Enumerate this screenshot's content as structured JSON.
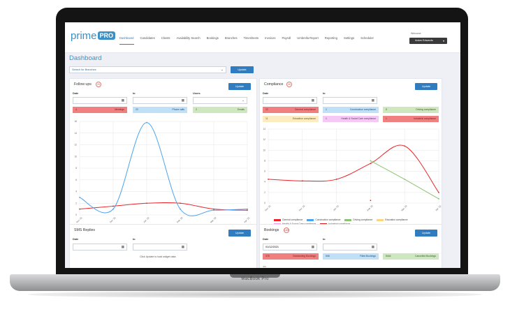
{
  "device": {
    "label": "MacBook Pro"
  },
  "app": {
    "brand": "prime",
    "brand_badge": "PRO"
  },
  "nav": {
    "items": [
      "Dashboard",
      "Candidates",
      "Clients",
      "Availability Search",
      "Bookings",
      "Branches",
      "Timesheets",
      "Invoices",
      "Payroll",
      "Umbrella Report",
      "Reporting",
      "Settings",
      "Scheduler"
    ]
  },
  "user": {
    "label": "Welcome",
    "name": "Adam Edwards"
  },
  "page": {
    "title": "Dashboard"
  },
  "branch": {
    "placeholder": "Search for Branches",
    "update": "Update"
  },
  "followups": {
    "title": "Follow ups",
    "badge": "24",
    "update": "Update",
    "date_label": "Date",
    "to_label": "to",
    "users_label": "Users",
    "stats": [
      {
        "count": "4",
        "label": "Meetings"
      },
      {
        "count": "22",
        "label": "Phone calls"
      },
      {
        "count": "2",
        "label": "Emails"
      }
    ]
  },
  "compliance": {
    "title": "Compliance",
    "badge": "40",
    "update": "Update",
    "date_label": "Date",
    "to_label": "to",
    "stats": [
      {
        "count": "22",
        "label": "General compliance"
      },
      {
        "count": "1",
        "label": "Construction compliance"
      },
      {
        "count": "5",
        "label": "Driving compliance"
      },
      {
        "count": "11",
        "label": "Education compliance"
      },
      {
        "count": "1",
        "label": "Health & Social Care compliance"
      },
      {
        "count": "1",
        "label": "Industrial compliance"
      }
    ]
  },
  "sms": {
    "title": "SMS Replies",
    "update": "Update",
    "date_label": "Date",
    "to_label": "to",
    "hint": "Click Update to load widget data"
  },
  "bookings": {
    "title": "Bookings",
    "badge": "1000",
    "update": "Update",
    "date_label": "Date",
    "to_label": "to",
    "date_value": "01/12/2021",
    "stats": [
      {
        "count": "378",
        "label": "Outstanding Bookings"
      },
      {
        "count": "508",
        "label": "Filled Bookings"
      },
      {
        "count": "5444",
        "label": "Cancelled Bookings"
      }
    ],
    "axis_top": "400"
  },
  "colors": {
    "red": "#e8262a",
    "blue": "#4aa3ee",
    "green": "#8bc472",
    "yellow": "#f7d67d",
    "pink": "#ef9aef",
    "darkred": "#d81b1b",
    "accent": "#2f7dc0"
  },
  "chart_data": [
    {
      "type": "line",
      "title": "",
      "categories": [
        "Nov '21",
        "Dec '21",
        "Jan '22",
        "Feb '22",
        "Mar '22",
        "Apr '22"
      ],
      "ylim": [
        0,
        16
      ],
      "yticks": [
        "0",
        "2",
        "4",
        "6",
        "8",
        "10",
        "12",
        "14",
        "16"
      ],
      "series": [
        {
          "name": "Meetings",
          "color": "#e8262a",
          "values": [
            1,
            1.5,
            2,
            2,
            1,
            0.8
          ]
        },
        {
          "name": "Phone calls",
          "color": "#4aa3ee",
          "values": [
            3,
            1,
            15.8,
            1,
            0.8,
            1
          ]
        }
      ],
      "legend": "bottom"
    },
    {
      "type": "line",
      "title": "",
      "categories": [
        "Nov '21",
        "Dec '21",
        "Jan '22",
        "Feb '22",
        "Mar '22",
        "Apr '22"
      ],
      "ylim": [
        0,
        14
      ],
      "yticks": [
        "0",
        "2",
        "4",
        "6",
        "8",
        "10",
        "12",
        "14"
      ],
      "series": [
        {
          "name": "General compliance",
          "color": "#e8262a",
          "values": [
            4.5,
            4.2,
            4.5,
            7.5,
            10.8,
            2
          ]
        },
        {
          "name": "Construction compliance",
          "color": "#4aa3ee",
          "values": [
            null,
            null,
            null,
            null,
            null,
            null
          ]
        },
        {
          "name": "Driving compliance",
          "color": "#8bc472",
          "values": [
            null,
            null,
            null,
            8,
            4.5,
            0.8
          ]
        },
        {
          "name": "Education compliance",
          "color": "#f7d67d",
          "values": [
            null,
            null,
            null,
            null,
            null,
            null
          ]
        },
        {
          "name": "Health & Social Care compliance",
          "color": "#ef9aef",
          "values": [
            null,
            null,
            null,
            null,
            null,
            null
          ]
        },
        {
          "name": "Industrial compliance",
          "color": "#d81b1b",
          "values": [
            null,
            null,
            null,
            0.5,
            null,
            null
          ]
        }
      ],
      "legend": "bottom"
    }
  ]
}
